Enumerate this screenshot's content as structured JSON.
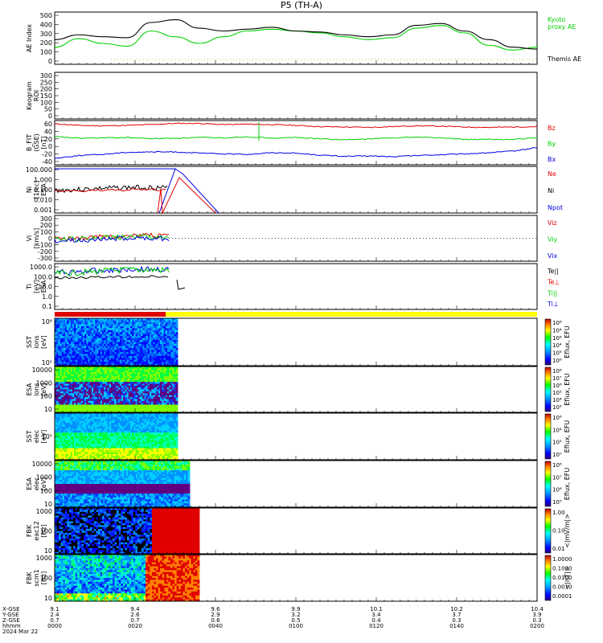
{
  "title": "P5 (TH-A)",
  "date_label": "2024 Mar 22",
  "colors": {
    "red": "#e00000",
    "green": "#00d000",
    "blue": "#0000e0",
    "black": "#000000",
    "yellow": "#ffff00",
    "bright_green": "#00e000"
  },
  "chart_data": [
    {
      "id": "ae",
      "type": "line",
      "ylabel": "AE Index",
      "ylim": [
        -30,
        520
      ],
      "yticks": [
        "500",
        "400",
        "300",
        "200",
        "100",
        "0"
      ],
      "legend_position": "right",
      "series": [
        {
          "name": "Kyoto\nproxy AE",
          "color": "#00d000",
          "x": [
            0,
            6,
            12,
            18,
            24,
            30,
            36,
            42,
            48,
            54,
            60,
            66,
            72,
            78,
            84,
            90,
            96,
            102,
            108,
            114,
            120
          ],
          "y": [
            150,
            240,
            190,
            160,
            320,
            260,
            190,
            260,
            320,
            340,
            320,
            300,
            260,
            230,
            250,
            350,
            380,
            300,
            170,
            120,
            150
          ]
        },
        {
          "name": "Themis AE",
          "color": "#000000",
          "x": [
            0,
            6,
            12,
            18,
            24,
            30,
            36,
            42,
            48,
            54,
            60,
            66,
            72,
            78,
            84,
            90,
            96,
            102,
            108,
            114,
            120
          ],
          "y": [
            230,
            280,
            260,
            250,
            410,
            440,
            350,
            320,
            340,
            360,
            320,
            310,
            280,
            260,
            280,
            380,
            400,
            320,
            230,
            150,
            130
          ]
        }
      ]
    },
    {
      "id": "keogram",
      "type": "line",
      "ylabel": "Keogram",
      "ylabel2": "ROI",
      "yticks": [
        "300",
        "250",
        "200",
        "150",
        "100",
        "50",
        "0"
      ]
    },
    {
      "id": "bfield",
      "type": "line",
      "ylabel": "B_FIT",
      "ylabel2": "(GSE)",
      "ylabel3": "[nT]",
      "yticks": [
        "60",
        "40",
        "20",
        "0",
        "-20",
        "-40"
      ],
      "series": [
        {
          "name": "Bz",
          "color": "#e00000",
          "y": [
            57,
            53,
            52,
            53,
            55,
            58,
            58,
            55,
            56,
            55,
            53,
            50,
            49,
            48,
            50,
            52,
            51,
            49,
            48,
            49,
            50
          ]
        },
        {
          "name": "By",
          "color": "#00d000",
          "y": [
            25,
            21,
            22,
            23,
            20,
            21,
            23,
            22,
            25,
            21,
            23,
            20,
            17,
            19,
            22,
            24,
            22,
            18,
            18,
            18,
            22
          ]
        },
        {
          "name": "Bx",
          "color": "#0000e0",
          "y": [
            -29,
            -22,
            -19,
            -14,
            -13,
            -13,
            -16,
            -18,
            -19,
            -15,
            -16,
            -21,
            -24,
            -23,
            -25,
            -22,
            -20,
            -18,
            -15,
            -11,
            -2
          ]
        }
      ]
    },
    {
      "id": "density",
      "type": "line",
      "log": true,
      "ylabel": "Ni",
      "ylabel2": "[1/cc]",
      "ylabel3": "ESA",
      "yticks": [
        "100.000",
        "1.000",
        "0.100",
        "0.010",
        "0.001"
      ],
      "series": [
        {
          "name": "Ne",
          "color": "#e00000"
        },
        {
          "name": "Ni",
          "color": "#000000"
        },
        {
          "name": "Npot",
          "color": "#0000e0"
        }
      ]
    },
    {
      "id": "velocity",
      "type": "line",
      "ylabel": "Vi",
      "ylabel2": "[km/s]",
      "yticks": [
        "300",
        "200",
        "100",
        "0",
        "-100",
        "-200",
        "-300"
      ],
      "series": [
        {
          "name": "Viz",
          "color": "#e00000"
        },
        {
          "name": "Viy",
          "color": "#00d000"
        },
        {
          "name": "Vix",
          "color": "#0000e0"
        }
      ]
    },
    {
      "id": "temperature",
      "type": "line",
      "log": true,
      "ylabel": "Ti",
      "ylabel2": "[eV]",
      "ylabel3": "ESA",
      "yticks": [
        "1000.0",
        "100.0",
        "10.0",
        "1.0",
        "0.1"
      ],
      "series": [
        {
          "name": "Te||",
          "color": "#000000"
        },
        {
          "name": "Te⊥",
          "color": "#e00000"
        },
        {
          "name": "Ti||",
          "color": "#00d000"
        },
        {
          "name": "Ti⊥",
          "color": "#0000e0"
        }
      ]
    },
    {
      "id": "mode",
      "type": "bar",
      "segments": [
        {
          "from": 0,
          "to": 0.23,
          "color": "#e00000"
        },
        {
          "from": 0.23,
          "to": 1,
          "color": "#ffff00"
        }
      ]
    },
    {
      "id": "sst_ion",
      "type": "heatmap",
      "ylabel": "SST",
      "ylabel2": "ions",
      "ylabel3": "[eV]",
      "yticks": [
        "10⁶",
        "10⁵"
      ],
      "cbar_label": "Eflux, EFU",
      "cbar_ticks": [
        "10⁸",
        "10⁴",
        "10⁶",
        "10⁴",
        "10⁵",
        "10⁶"
      ],
      "data_end": 0.255
    },
    {
      "id": "esa_ion",
      "type": "heatmap",
      "ylabel": "ESA",
      "ylabel2": "ions",
      "ylabel3": "[eV]",
      "yticks": [
        "10000",
        "1000",
        "100",
        "10"
      ],
      "cbar_label": "Eflux, EFU",
      "cbar_ticks": [
        "10⁸",
        "10⁷",
        "10⁶",
        "10⁵",
        "10⁴",
        "10³"
      ],
      "data_end": 0.255
    },
    {
      "id": "sst_elec",
      "type": "heatmap",
      "ylabel": "SST",
      "ylabel2": "elec",
      "ylabel3": "[eV]",
      "yticks": [
        "10⁵"
      ],
      "cbar_label": "Eflux, EFU",
      "cbar_ticks": [
        "10⁶",
        "10⁴",
        "10²",
        "10⁰"
      ],
      "data_end": 0.255
    },
    {
      "id": "esa_elec",
      "type": "heatmap",
      "ylabel": "ESA",
      "ylabel2": "elec",
      "ylabel3": "[eV]",
      "yticks": [
        "10000",
        "1000",
        "100",
        "10"
      ],
      "cbar_label": "Eflux, EFU",
      "cbar_ticks": [
        "10⁸",
        "10⁷",
        "10⁶",
        "10⁵"
      ],
      "data_end": 0.28
    },
    {
      "id": "fbk_e",
      "type": "heatmap",
      "ylabel": "FBK",
      "ylabel2": "eac12",
      "ylabel3": "[Hz]",
      "yticks": [
        "1000",
        "100",
        "10"
      ],
      "cbar_label": "<|mV/m|>",
      "cbar_ticks": [
        "1.00",
        "0.10",
        "0.01"
      ],
      "data_end": 0.3
    },
    {
      "id": "fbk_b",
      "type": "heatmap",
      "ylabel": "FBK",
      "ylabel2": "scm1",
      "ylabel3": "[Hz]",
      "yticks": [
        "1000",
        "100",
        "10"
      ],
      "cbar_label": "<|nT|>",
      "cbar_ticks": [
        "1.0000",
        "0.1000",
        "0.0100",
        "0.0010",
        "0.0001"
      ],
      "data_end": 0.3
    }
  ],
  "xaxis": {
    "row_labels": [
      "X-GSE",
      "Y-GSE",
      "Z-GSE",
      "hhmm",
      "2024 Mar 22"
    ],
    "ticks": [
      {
        "x": "9.1",
        "y": "2.4",
        "z": "0.7",
        "t": "0000"
      },
      {
        "x": "9.4",
        "y": "2.6",
        "z": "0.7",
        "t": "0020"
      },
      {
        "x": "9.6",
        "y": "2.9",
        "z": "0.6",
        "t": "0040"
      },
      {
        "x": "9.9",
        "y": "3.2",
        "z": "0.5",
        "t": "0100"
      },
      {
        "x": "10.1",
        "y": "3.4",
        "z": "0.4",
        "t": "0120"
      },
      {
        "x": "10.2",
        "y": "3.7",
        "z": "0.3",
        "t": "0140"
      },
      {
        "x": "10.4",
        "y": "3.9",
        "z": "0.3",
        "t": "0200"
      }
    ]
  }
}
